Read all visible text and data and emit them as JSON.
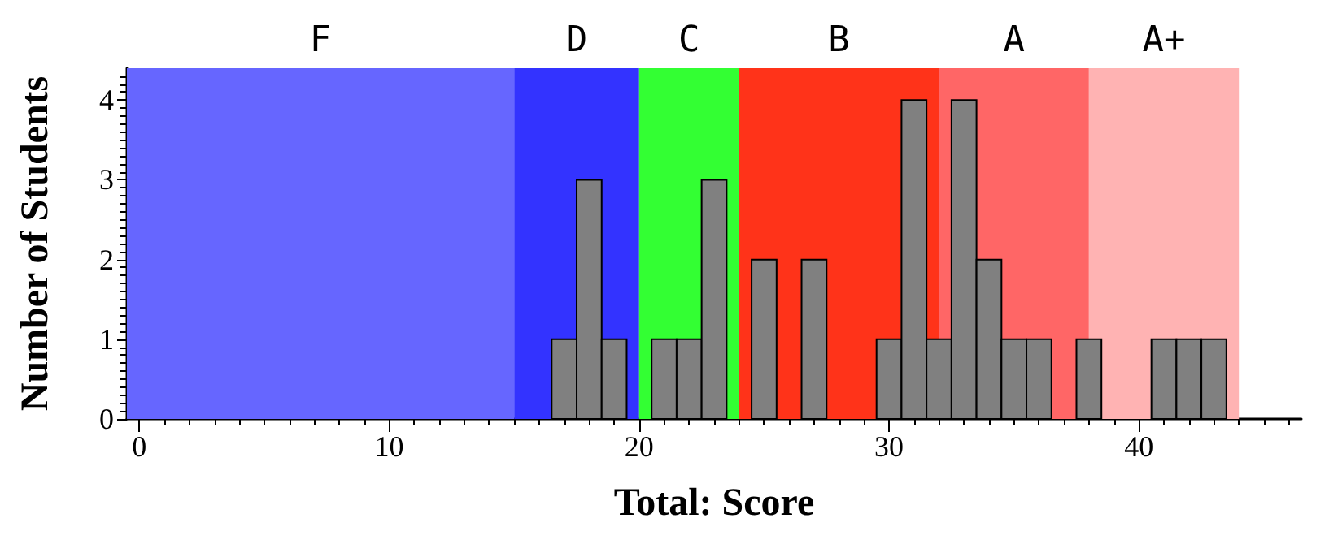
{
  "chart_data": {
    "type": "histogram",
    "xlabel": "Total: Score",
    "ylabel": "Number of Students",
    "bins": [
      16.5,
      17.5,
      18.5,
      19.5,
      20.5,
      21.5,
      22.5,
      23.5,
      24.5,
      25.5,
      26.5,
      27.5,
      28.5,
      29.5,
      30.5,
      31.5,
      32.5,
      33.5,
      34.5,
      35.5,
      36.5,
      37.5,
      38.5,
      39.5,
      40.5,
      41.5,
      42.5,
      43.5
    ],
    "values": [
      1,
      3,
      1,
      0,
      1,
      1,
      3,
      0,
      2,
      0,
      2,
      0,
      0,
      1,
      4,
      1,
      4,
      2,
      1,
      1,
      0,
      1,
      0,
      0,
      1,
      1,
      1
    ],
    "color": "#808080",
    "xlim": [
      -0.5,
      46.5
    ],
    "xticks": [
      0,
      10,
      20,
      30,
      40
    ],
    "ylim": [
      0,
      4.4
    ],
    "yticks": [
      0,
      1,
      2,
      3,
      4
    ],
    "bands": [
      {
        "axis": "x",
        "from": -0.5,
        "to": 15,
        "label": "F",
        "color": "#6666ff"
      },
      {
        "axis": "x",
        "from": 15,
        "to": 20,
        "label": "D",
        "color": "#3333ff"
      },
      {
        "axis": "x",
        "from": 20,
        "to": 24,
        "label": "C",
        "color": "#33ff33"
      },
      {
        "axis": "x",
        "from": 24,
        "to": 32,
        "label": "B",
        "color": "#ff3319"
      },
      {
        "axis": "x",
        "from": 32,
        "to": 38,
        "label": "A",
        "color": "#ff6666"
      },
      {
        "axis": "x",
        "from": 38,
        "to": 44,
        "label": "A+",
        "color": "#ffb3b3"
      }
    ],
    "grid": false
  }
}
